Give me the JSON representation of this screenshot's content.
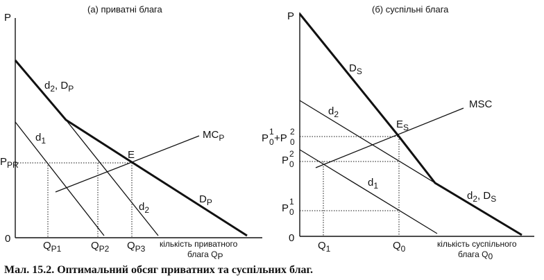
{
  "caption": "Мал. 15.2. Оптимальний обсяг приватних та суспільних благ.",
  "panel_a": {
    "title": "(а) приватні блага",
    "y_axis": "P",
    "origin": "0",
    "price_label": "P",
    "price_sub": "PR",
    "point": "E",
    "d1": "d",
    "d1_sub": "1",
    "d2": "d",
    "d2_sub": "2",
    "d2dp_a": "d",
    "d2dp_a_sub": "2",
    "d2dp_b": ", D",
    "d2dp_b_sub": "P",
    "dp": "D",
    "dp_sub": "P",
    "mc": "MC",
    "mc_sub": "P",
    "q1": "Q",
    "q1_sub": "P1",
    "q2": "Q",
    "q2_sub": "P2",
    "q3": "Q",
    "q3_sub": "P3",
    "x_axis_line1": "кількість приватного",
    "x_axis_line2": "блага Q",
    "x_axis_sub": "P"
  },
  "panel_b": {
    "title": "(б) суспільні блага",
    "y_axis": "P",
    "origin": "0",
    "ds": "D",
    "ds_sub": "S",
    "d2": "d",
    "d2_sub": "2",
    "d1": "d",
    "d1_sub": "1",
    "msc": "MSC",
    "point": "E",
    "point_sub": "S",
    "d2ds_a": "d",
    "d2ds_a_sub": "2",
    "d2ds_b": ", D",
    "d2ds_b_sub": "S",
    "p_sum_a": "P",
    "p_sum_a_sup": "1",
    "p_sum_a_sub": "0",
    "p_sum_plus": "+P",
    "p_sum_b_sup": "2",
    "p_sum_b_sub": "0",
    "p2": "P",
    "p2_sup": "2",
    "p2_sub": "0",
    "p1": "P",
    "p1_sup": "1",
    "p1_sub": "0",
    "q1": "Q",
    "q1_sub": "1",
    "q0": "Q",
    "q0_sub": "0",
    "x_axis_line1": "кількість суспільного",
    "x_axis_line2": "блага Q",
    "x_axis_sub": "0"
  }
}
